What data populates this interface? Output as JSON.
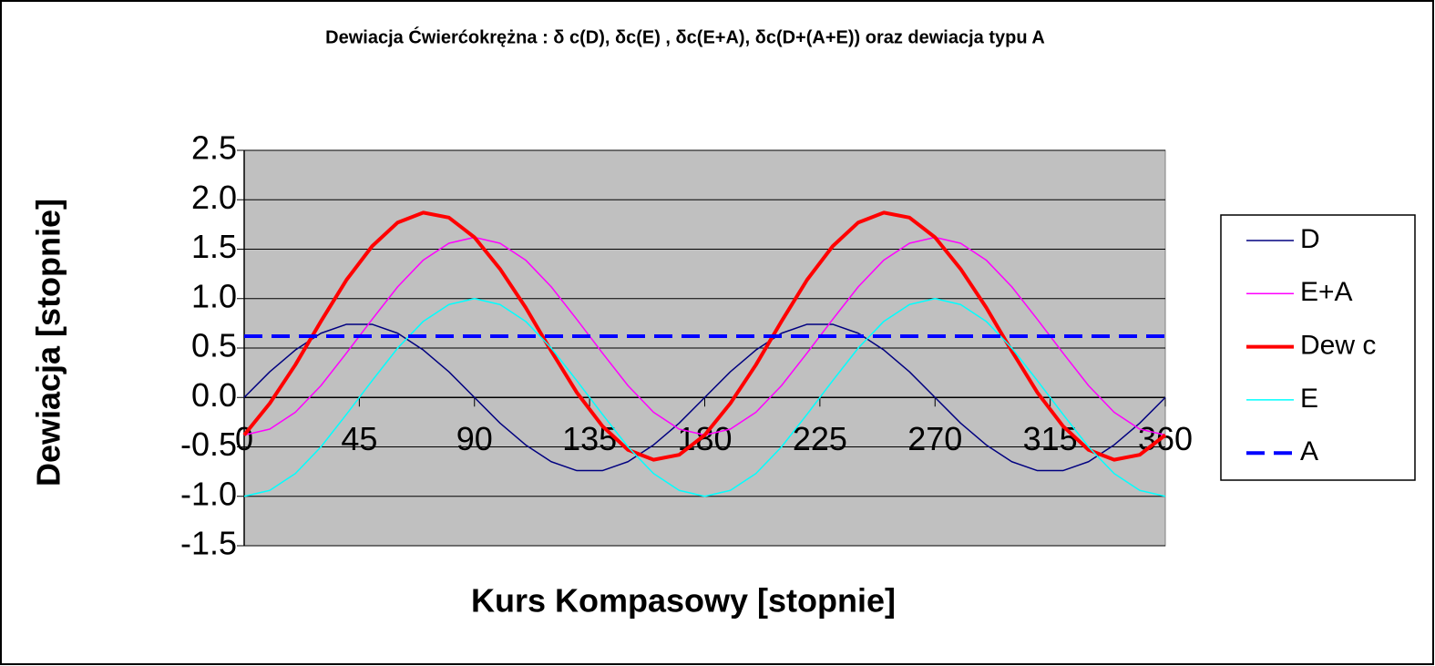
{
  "chart_data": {
    "type": "line",
    "title": "Dewiacja Ćwierćokrężna : δ c(D), δc(E) , δc(E+A), δc(D+(A+E)) oraz dewiacja typu A",
    "x_label": "Kurs Kompasowy  [stopnie]",
    "y_label": "Dewiacja [stopnie]",
    "x": [
      0,
      10,
      20,
      30,
      40,
      50,
      60,
      70,
      80,
      90,
      100,
      110,
      120,
      130,
      140,
      150,
      160,
      170,
      180,
      190,
      200,
      210,
      220,
      230,
      240,
      250,
      260,
      270,
      280,
      290,
      300,
      310,
      320,
      330,
      340,
      350,
      360
    ],
    "series": [
      {
        "name": "D",
        "color": "#000080",
        "width": 1.5,
        "dashed": false,
        "values": [
          0,
          0.26,
          0.48,
          0.65,
          0.74,
          0.74,
          0.65,
          0.48,
          0.26,
          0,
          -0.26,
          -0.48,
          -0.65,
          -0.74,
          -0.74,
          -0.65,
          -0.48,
          -0.26,
          0,
          0.26,
          0.48,
          0.65,
          0.74,
          0.74,
          0.65,
          0.48,
          0.26,
          0,
          -0.26,
          -0.48,
          -0.65,
          -0.74,
          -0.74,
          -0.65,
          -0.48,
          -0.26,
          0
        ]
      },
      {
        "name": "E+A",
        "color": "#ff00ff",
        "width": 1.5,
        "dashed": false,
        "values": [
          -0.38,
          -0.32,
          -0.15,
          0.12,
          0.45,
          0.79,
          1.12,
          1.39,
          1.56,
          1.62,
          1.56,
          1.39,
          1.12,
          0.79,
          0.45,
          0.12,
          -0.15,
          -0.32,
          -0.38,
          -0.32,
          -0.15,
          0.12,
          0.45,
          0.79,
          1.12,
          1.39,
          1.56,
          1.62,
          1.56,
          1.39,
          1.12,
          0.79,
          0.45,
          0.12,
          -0.15,
          -0.32,
          -0.38
        ]
      },
      {
        "name": "Dew c",
        "color": "#ff0000",
        "width": 4,
        "dashed": false,
        "values": [
          -0.38,
          -0.06,
          0.33,
          0.77,
          1.19,
          1.53,
          1.77,
          1.87,
          1.82,
          1.62,
          1.3,
          0.91,
          0.47,
          0.05,
          -0.29,
          -0.53,
          -0.63,
          -0.58,
          -0.38,
          -0.06,
          0.33,
          0.77,
          1.19,
          1.53,
          1.77,
          1.87,
          1.82,
          1.62,
          1.3,
          0.91,
          0.47,
          0.05,
          -0.29,
          -0.53,
          -0.63,
          -0.58,
          -0.38
        ]
      },
      {
        "name": "E",
        "color": "#00ffff",
        "width": 1.5,
        "dashed": false,
        "values": [
          -1,
          -0.94,
          -0.77,
          -0.5,
          -0.17,
          0.17,
          0.5,
          0.77,
          0.94,
          1,
          0.94,
          0.77,
          0.5,
          0.17,
          -0.17,
          -0.5,
          -0.77,
          -0.94,
          -1,
          -0.94,
          -0.77,
          -0.5,
          -0.17,
          0.17,
          0.5,
          0.77,
          0.94,
          1,
          0.94,
          0.77,
          0.5,
          0.17,
          -0.17,
          -0.5,
          -0.77,
          -0.94,
          -1
        ]
      },
      {
        "name": "A",
        "color": "#0000ff",
        "width": 4,
        "dashed": true,
        "values": [
          0.62,
          0.62,
          0.62,
          0.62,
          0.62,
          0.62,
          0.62,
          0.62,
          0.62,
          0.62,
          0.62,
          0.62,
          0.62,
          0.62,
          0.62,
          0.62,
          0.62,
          0.62,
          0.62,
          0.62,
          0.62,
          0.62,
          0.62,
          0.62,
          0.62,
          0.62,
          0.62,
          0.62,
          0.62,
          0.62,
          0.62,
          0.62,
          0.62,
          0.62,
          0.62,
          0.62,
          0.62
        ]
      }
    ],
    "xlim": [
      0,
      360
    ],
    "xticks": [
      0,
      45,
      90,
      135,
      180,
      225,
      270,
      315,
      360
    ],
    "ylim": [
      -1.5,
      2.5
    ],
    "yticks": [
      -1.5,
      {
        "value": -1,
        "label": "-1.0"
      },
      -0.5,
      {
        "value": 0,
        "label": "0.0"
      },
      0.5,
      {
        "value": 1,
        "label": "1.0"
      },
      1.5,
      {
        "value": 2,
        "label": "2.0"
      },
      2.5
    ],
    "grid": true,
    "legend": "right",
    "plot_background": "#c0c0c0"
  }
}
